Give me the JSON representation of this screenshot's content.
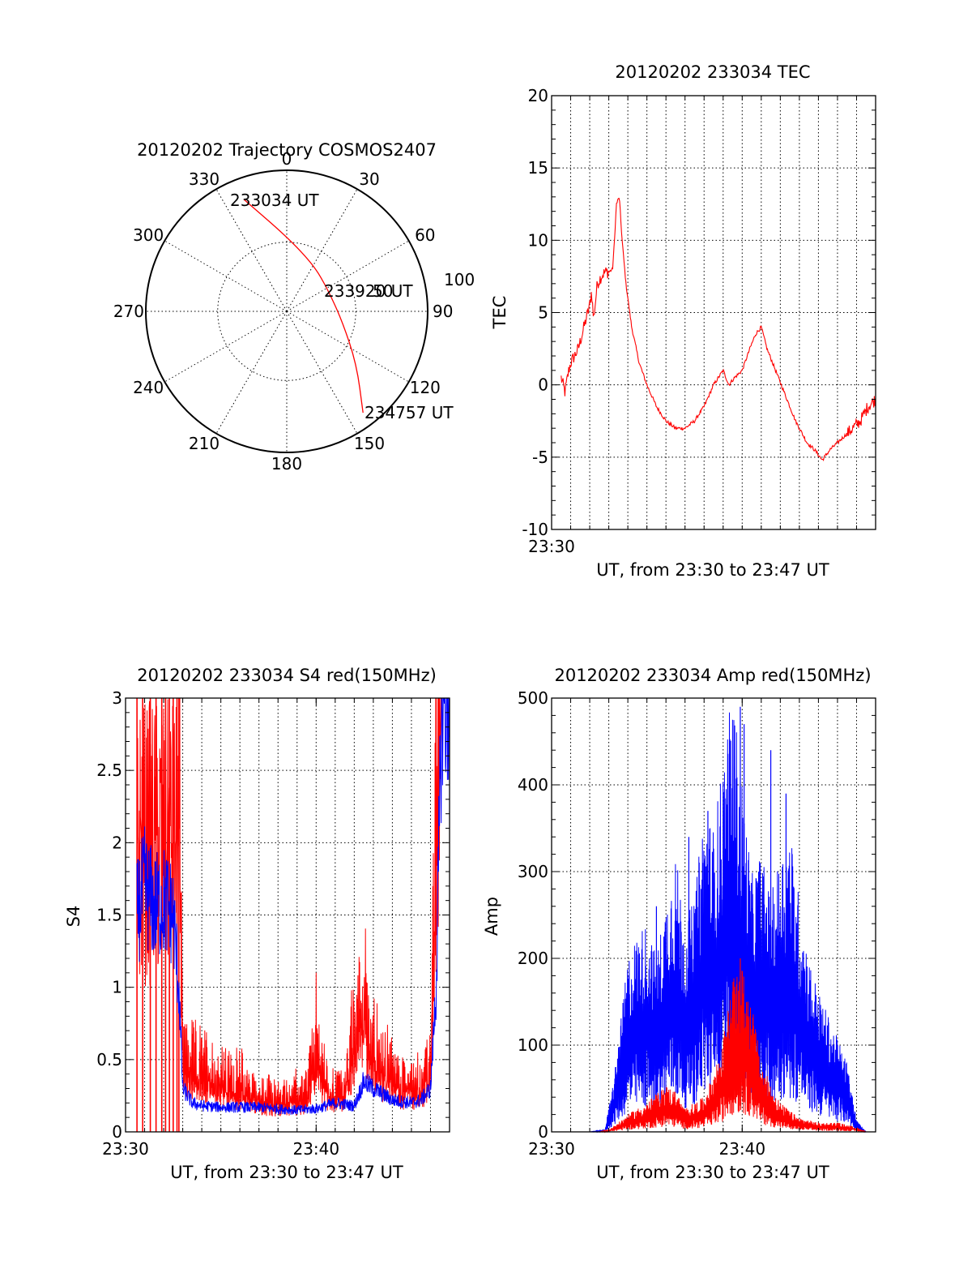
{
  "chart_data": [
    {
      "id": "polar",
      "type": "polar-trajectory",
      "title": "20120202 Trajectory COSMOS2407",
      "angle_labels": [
        "0",
        "30",
        "60",
        "90",
        "120",
        "150",
        "180",
        "210",
        "240",
        "270",
        "300",
        "330"
      ],
      "radius_label": "100",
      "annotations": {
        "start": "233034 UT",
        "middle": "233920 UT",
        "middle_overlap": "50",
        "end": "234757 UT"
      },
      "trajectory": {
        "color": "#ff0000",
        "points_az_zenith": [
          [
            -21,
            85
          ],
          [
            0,
            53
          ],
          [
            30,
            38
          ],
          [
            62,
            33
          ],
          [
            100,
            40
          ],
          [
            127,
            62
          ],
          [
            143,
            90
          ]
        ]
      }
    },
    {
      "id": "tec",
      "type": "line",
      "title": "20120202 233034 TEC",
      "xlabel": "UT, from 23:30 to 23:47 UT",
      "ylabel": "TEC",
      "xlim": [
        0,
        17
      ],
      "ylim": [
        -10,
        20
      ],
      "yticks": [
        "-10",
        "-5",
        "0",
        "5",
        "10",
        "15",
        "20"
      ],
      "xticks": [
        {
          "x": 0,
          "label": "23:30"
        }
      ],
      "grid": true,
      "series": [
        {
          "color": "#ff0000",
          "x": [
            0.5,
            0.7,
            0.9,
            1.0,
            1.2,
            1.4,
            1.6,
            1.8,
            2.0,
            2.1,
            2.2,
            2.4,
            2.6,
            2.8,
            3.0,
            3.2,
            3.3,
            3.4,
            3.55,
            3.7,
            3.9,
            4.2,
            4.6,
            5.0,
            5.5,
            6.0,
            6.5,
            7.0,
            7.5,
            8.0,
            8.5,
            9.0,
            9.3,
            9.6,
            10.0,
            10.4,
            10.7,
            11.0,
            11.3,
            11.6,
            11.9,
            12.2,
            12.5,
            12.8,
            13.0,
            13.4,
            13.8,
            14.2,
            14.6,
            15.0,
            15.4,
            15.8,
            16.2,
            16.6,
            17.0
          ],
          "y": [
            0.5,
            -0.5,
            1.0,
            1.5,
            2.0,
            2.5,
            3.5,
            4.5,
            5.5,
            6.5,
            4.5,
            7.0,
            7.5,
            7.8,
            7.8,
            8.0,
            10.0,
            12.5,
            13.0,
            10.0,
            7.0,
            4.0,
            1.5,
            0.0,
            -1.5,
            -2.5,
            -3.0,
            -3.0,
            -2.5,
            -1.5,
            0.0,
            1.0,
            0.0,
            0.5,
            1.0,
            2.5,
            3.5,
            4.0,
            2.5,
            1.5,
            0.5,
            -0.5,
            -1.5,
            -2.5,
            -3.0,
            -4.0,
            -4.5,
            -5.2,
            -4.5,
            -4.0,
            -3.5,
            -3.0,
            -2.5,
            -1.5,
            -1.0
          ]
        }
      ]
    },
    {
      "id": "s4",
      "type": "line",
      "title": "20120202 233034 S4 red(150MHz)",
      "xlabel": "UT, from 23:30 to 23:47 UT",
      "ylabel": "S4",
      "xlim": [
        0,
        17
      ],
      "ylim": [
        0,
        3
      ],
      "yticks": [
        "0",
        "0.5",
        "1",
        "1.5",
        "2",
        "2.5",
        "3"
      ],
      "xticks": [
        {
          "x": 0,
          "label": "23:30"
        },
        {
          "x": 10,
          "label": "23:40"
        }
      ],
      "grid": true,
      "series": [
        {
          "color": "#ff0000",
          "x": [
            0.6,
            2.8,
            3.0,
            4.0,
            5.0,
            6.0,
            7.0,
            8.0,
            9.0,
            9.5,
            10.0,
            10.5,
            11.0,
            11.5,
            12.0,
            12.5,
            13.0,
            13.5,
            14.0,
            14.5,
            15.0,
            15.5,
            16.0,
            16.5,
            17.0
          ],
          "y": [
            3.0,
            3.0,
            0.45,
            0.4,
            0.32,
            0.3,
            0.22,
            0.2,
            0.22,
            0.25,
            0.55,
            0.3,
            0.25,
            0.28,
            0.6,
            0.8,
            0.55,
            0.4,
            0.35,
            0.3,
            0.3,
            0.3,
            0.4,
            3.0,
            3.0
          ],
          "spikes_x": [
            0.6,
            0.9,
            1.3,
            1.6,
            1.9,
            2.1,
            2.3,
            2.5,
            2.7,
            2.8
          ]
        },
        {
          "color": "#0000ff",
          "x": [
            0.6,
            1.0,
            1.5,
            2.0,
            2.5,
            2.8,
            3.0,
            3.5,
            4.0,
            5.0,
            6.0,
            7.0,
            8.0,
            9.0,
            10.0,
            11.0,
            12.0,
            12.5,
            13.0,
            14.0,
            15.0,
            15.5,
            16.0,
            16.3,
            16.6,
            17.0
          ],
          "y": [
            1.5,
            1.7,
            1.55,
            1.6,
            1.5,
            1.0,
            0.3,
            0.2,
            0.18,
            0.17,
            0.17,
            0.17,
            0.16,
            0.15,
            0.16,
            0.2,
            0.18,
            0.35,
            0.3,
            0.22,
            0.2,
            0.22,
            0.3,
            1.0,
            3.0,
            3.0
          ]
        }
      ]
    },
    {
      "id": "amp",
      "type": "line",
      "title": "20120202 233034 Amp red(150MHz)",
      "xlabel": "UT, from 23:30 to 23:47 UT",
      "ylabel": "Amp",
      "xlim": [
        0,
        17
      ],
      "ylim": [
        0,
        500
      ],
      "yticks": [
        "0",
        "100",
        "200",
        "300",
        "400",
        "500"
      ],
      "xticks": [
        {
          "x": 0,
          "label": "23:30"
        },
        {
          "x": 10,
          "label": "23:40"
        }
      ],
      "grid": true,
      "series": [
        {
          "color": "#0000ff",
          "x": [
            0.5,
            2.0,
            2.8,
            3.2,
            3.6,
            4.0,
            4.5,
            5.0,
            5.5,
            6.0,
            6.5,
            7.0,
            7.5,
            8.0,
            8.5,
            9.0,
            9.5,
            10.0,
            10.5,
            11.0,
            11.5,
            12.0,
            12.5,
            13.0,
            13.5,
            14.0,
            14.5,
            15.0,
            15.5,
            16.0,
            16.5,
            17.0
          ],
          "y": [
            0,
            0,
            2,
            40,
            90,
            150,
            170,
            180,
            150,
            200,
            240,
            180,
            200,
            280,
            260,
            320,
            380,
            300,
            220,
            240,
            200,
            240,
            260,
            200,
            150,
            120,
            100,
            80,
            60,
            10,
            0,
            0
          ],
          "peaks": [
            260,
            370,
            340,
            420,
            490,
            470,
            390,
            440,
            300
          ]
        },
        {
          "color": "#ff0000",
          "x": [
            0.5,
            2.5,
            3.0,
            3.5,
            4.0,
            5.0,
            6.0,
            6.5,
            7.0,
            8.0,
            8.5,
            9.0,
            9.5,
            10.0,
            10.5,
            11.0,
            11.5,
            12.0,
            12.5,
            13.0,
            14.0,
            15.0,
            16.0,
            16.5,
            17.0
          ],
          "y": [
            0,
            0,
            2,
            8,
            15,
            25,
            40,
            35,
            20,
            30,
            50,
            80,
            130,
            140,
            110,
            60,
            40,
            25,
            18,
            12,
            8,
            8,
            4,
            0,
            0
          ],
          "peaks": [
            170,
            200,
            150
          ]
        }
      ]
    }
  ]
}
